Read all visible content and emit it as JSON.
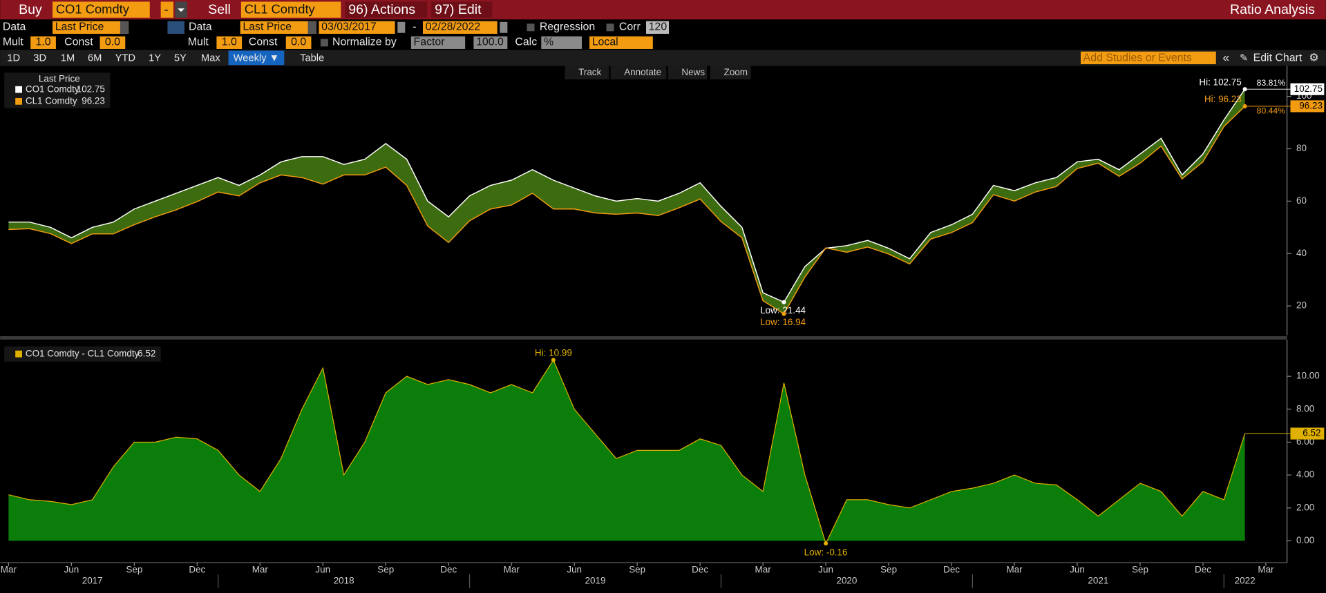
{
  "toolbar": {
    "buy_label": "Buy",
    "buy_ticker": "CO1 Comdty",
    "dash": "-",
    "sell_label": "Sell",
    "sell_ticker": "CL1 Comdty",
    "actions": "96) Actions",
    "edit": "97) Edit",
    "title": "Ratio Analysis"
  },
  "row2": {
    "data_label": "Data",
    "data_value": "Last Price",
    "data2_label": "Data",
    "data2_value": "Last Price",
    "start_date": "03/03/2017",
    "date_sep": "-",
    "end_date": "02/28/2022",
    "regression": "Regression",
    "corr": "Corr",
    "corr_value": "120"
  },
  "row3": {
    "mult": "Mult",
    "mult_value": "1.0",
    "const": "Const",
    "const_value": "0.0",
    "mult2": "Mult",
    "mult2_value": "1.0",
    "const2": "Const",
    "const2_value": "0.0",
    "normalize": "Normalize by",
    "factor": "Factor",
    "factor_value": "100.0",
    "calc": "Calc",
    "calc_value": "%",
    "local": "Local"
  },
  "periods": [
    "1D",
    "3D",
    "1M",
    "6M",
    "YTD",
    "1Y",
    "5Y",
    "Max",
    "Weekly ▼",
    "Table"
  ],
  "studies_placeholder": "Add Studies or Events",
  "edit_chart": "Edit Chart",
  "chart_tools": [
    "Track",
    "Annotate",
    "News",
    "Zoom"
  ],
  "x_axis": {
    "xlim": [
      "2017-03",
      "2022-03"
    ],
    "x": [
      "2017-03",
      "2017-04",
      "2017-05",
      "2017-06",
      "2017-07",
      "2017-08",
      "2017-09",
      "2017-10",
      "2017-11",
      "2017-12",
      "2018-01",
      "2018-02",
      "2018-03",
      "2018-04",
      "2018-05",
      "2018-06",
      "2018-07",
      "2018-08",
      "2018-09",
      "2018-10",
      "2018-11",
      "2018-12",
      "2019-01",
      "2019-02",
      "2019-03",
      "2019-04",
      "2019-05",
      "2019-06",
      "2019-07",
      "2019-08",
      "2019-09",
      "2019-10",
      "2019-11",
      "2019-12",
      "2020-01",
      "2020-02",
      "2020-03",
      "2020-04",
      "2020-05",
      "2020-06",
      "2020-07",
      "2020-08",
      "2020-09",
      "2020-10",
      "2020-11",
      "2020-12",
      "2021-01",
      "2021-02",
      "2021-03",
      "2021-04",
      "2021-05",
      "2021-06",
      "2021-07",
      "2021-08",
      "2021-09",
      "2021-10",
      "2021-11",
      "2021-12",
      "2022-01",
      "2022-02"
    ],
    "xticks": [
      {
        "value": "2017-03",
        "label": "Mar"
      },
      {
        "value": "2017-06",
        "label": "Jun"
      },
      {
        "value": "2017-09",
        "label": "Sep"
      },
      {
        "value": "2017-12",
        "label": "Dec"
      },
      {
        "value": "2018-03",
        "label": "Mar"
      },
      {
        "value": "2018-06",
        "label": "Jun"
      },
      {
        "value": "2018-09",
        "label": "Sep"
      },
      {
        "value": "2018-12",
        "label": "Dec"
      },
      {
        "value": "2019-03",
        "label": "Mar"
      },
      {
        "value": "2019-06",
        "label": "Jun"
      },
      {
        "value": "2019-09",
        "label": "Sep"
      },
      {
        "value": "2019-12",
        "label": "Dec"
      },
      {
        "value": "2020-03",
        "label": "Mar"
      },
      {
        "value": "2020-06",
        "label": "Jun"
      },
      {
        "value": "2020-09",
        "label": "Sep"
      },
      {
        "value": "2020-12",
        "label": "Dec"
      },
      {
        "value": "2021-03",
        "label": "Mar"
      },
      {
        "value": "2021-06",
        "label": "Jun"
      },
      {
        "value": "2021-09",
        "label": "Sep"
      },
      {
        "value": "2021-12",
        "label": "Dec"
      },
      {
        "value": "2022-03",
        "label": "Mar"
      }
    ],
    "year_ticks": [
      {
        "value": "2017-07",
        "label": "2017"
      },
      {
        "value": "2018-07",
        "label": "2018"
      },
      {
        "value": "2019-07",
        "label": "2019"
      },
      {
        "value": "2020-07",
        "label": "2020"
      },
      {
        "value": "2021-07",
        "label": "2021"
      },
      {
        "value": "2022-02",
        "label": "2022"
      }
    ]
  },
  "chart_data": [
    {
      "type": "band",
      "legend_title": "Last Price",
      "hi_label": "Hi:",
      "low_label": "Low:",
      "ylim": [
        9.4,
        111
      ],
      "yticks": [
        20,
        40,
        60,
        80,
        100
      ],
      "fill": "#3d6b0f",
      "series": [
        {
          "name": "CO1 Comdty",
          "color": "#ffffff",
          "values": [
            52,
            52,
            50,
            46,
            50,
            52,
            57,
            60,
            63,
            66,
            69,
            66,
            70,
            75,
            77,
            77,
            74,
            76,
            82,
            76,
            60,
            54,
            62,
            66,
            68,
            72,
            68,
            65,
            62,
            60,
            61,
            60,
            63,
            67,
            58,
            50,
            25,
            21.44,
            35,
            42,
            43,
            45,
            42,
            38,
            48,
            51,
            55,
            66,
            64,
            67,
            69,
            75,
            76,
            72,
            78,
            84,
            70,
            78,
            91,
            102.75
          ]
        },
        {
          "name": "CL1 Comdty",
          "color": "#f39c12",
          "values": [
            49.2,
            49.5,
            47.6,
            43.8,
            47.5,
            47.5,
            51,
            54,
            56.7,
            59.8,
            63.5,
            62,
            67,
            70,
            69,
            66.5,
            70,
            70,
            73,
            66,
            50.5,
            44.2,
            52.5,
            57,
            58.5,
            63,
            57.01,
            57,
            55.5,
            55,
            55.5,
            54.5,
            57.5,
            60.8,
            52.2,
            46,
            22,
            16.94,
            31,
            42.16,
            40.5,
            42.5,
            39.8,
            36,
            45.5,
            48,
            51.8,
            62.5,
            60,
            63.5,
            65.6,
            72.5,
            74.5,
            69.5,
            74.5,
            81,
            68.5,
            75,
            88.5,
            96.23
          ]
        }
      ],
      "annotations": [
        {
          "value": 83.81,
          "label": "83.81%"
        },
        {
          "value": 80.44,
          "label": "80.44%"
        }
      ]
    },
    {
      "type": "area",
      "hi_label": "Hi:",
      "low_label": "Low:",
      "ylim": [
        -1.22,
        12.13
      ],
      "yticks": [
        {
          "value": 0,
          "label": "0.00"
        },
        {
          "value": 2,
          "label": "2.00"
        },
        {
          "value": 4,
          "label": "4.00"
        },
        {
          "value": 6,
          "label": "6.00"
        },
        {
          "value": 8,
          "label": "8.00"
        },
        {
          "value": 10,
          "label": "10.00"
        }
      ],
      "fill": "#0a7d0a",
      "series": [
        {
          "name": "CO1 Comdty - CL1 Comdty",
          "color": "#e0b000",
          "values": [
            2.8,
            2.5,
            2.4,
            2.2,
            2.5,
            4.5,
            6,
            6,
            6.3,
            6.2,
            5.5,
            4,
            3,
            5,
            8,
            10.5,
            4,
            6,
            9,
            10,
            9.5,
            9.8,
            9.5,
            9,
            9.5,
            9,
            10.99,
            8,
            6.5,
            5,
            5.5,
            5.5,
            5.5,
            6.2,
            5.8,
            4,
            3,
            9.6,
            4,
            -0.16,
            2.5,
            2.5,
            2.2,
            2,
            2.5,
            3,
            3.2,
            3.5,
            4,
            3.5,
            3.4,
            2.5,
            1.5,
            2.5,
            3.5,
            3,
            1.5,
            3,
            2.5,
            6.52
          ]
        }
      ]
    }
  ]
}
